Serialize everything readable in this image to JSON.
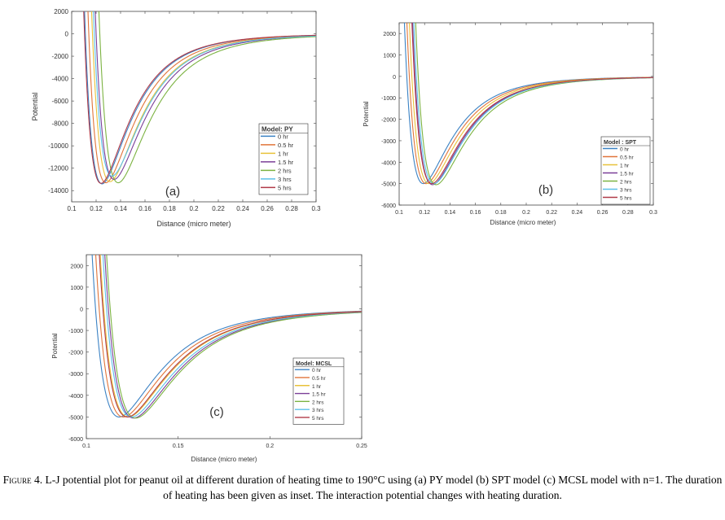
{
  "caption": {
    "label": "Figure 4.",
    "text": "L-J potential plot for peanut oil at different duration of heating time to 190°C using (a) PY model (b) SPT model (c) MCSL model with n=1. The duration of heating has been given as inset. The interaction potential changes with heating duration."
  },
  "colors": [
    "#3b82c4",
    "#e0743a",
    "#e8c23a",
    "#7b3f98",
    "#7cb342",
    "#5bc0e8",
    "#b03a48"
  ],
  "chart_data": [
    {
      "type": "line",
      "panel_label": "(a)",
      "title": "",
      "xlabel": "Distance (micro meter)",
      "ylabel": "Potential",
      "xlim": [
        0.1,
        0.3
      ],
      "ylim": [
        -15000,
        2000
      ],
      "xticks": [
        0.1,
        0.12,
        0.14,
        0.16,
        0.18,
        0.2,
        0.22,
        0.24,
        0.26,
        0.28,
        0.3
      ],
      "xtick_labels": [
        "0.1",
        "0.12",
        "0.14",
        "0.16",
        "0.18",
        "0.2",
        "0.22",
        "0.24",
        "0.26",
        "0.28",
        "0.3"
      ],
      "yticks": [
        -14000,
        -12000,
        -10000,
        -8000,
        -6000,
        -4000,
        -2000,
        0,
        2000
      ],
      "ytick_labels": [
        "-14000",
        "-12000",
        "-10000",
        "-8000",
        "-6000",
        "-4000",
        "-2000",
        "0",
        "2000"
      ],
      "legend": {
        "title": "Model: PY",
        "position": "right-bottom"
      },
      "series": [
        {
          "name": "0 hr",
          "sigma": 0.1112,
          "epsilon": 13400
        },
        {
          "name": "0.5 hr",
          "sigma": 0.114,
          "epsilon": 13300
        },
        {
          "name": "1 hr",
          "sigma": 0.117,
          "epsilon": 13200
        },
        {
          "name": "1.5 hr",
          "sigma": 0.12,
          "epsilon": 13000
        },
        {
          "name": "2 hrs",
          "sigma": 0.123,
          "epsilon": 13300
        },
        {
          "name": "3 hrs",
          "sigma": 0.1185,
          "epsilon": 12700
        },
        {
          "name": "5 hrs",
          "sigma": 0.1105,
          "epsilon": 13350
        }
      ]
    },
    {
      "type": "line",
      "panel_label": "(b)",
      "title": "",
      "xlabel": "Distance (micro meter)",
      "ylabel": "Potential",
      "xlim": [
        0.1,
        0.3
      ],
      "ylim": [
        -6000,
        2500
      ],
      "xticks": [
        0.1,
        0.12,
        0.14,
        0.16,
        0.18,
        0.2,
        0.22,
        0.24,
        0.26,
        0.28,
        0.3
      ],
      "xtick_labels": [
        "0.1",
        "0.12",
        "0.14",
        "0.16",
        "0.18",
        "0.2",
        "0.22",
        "0.24",
        "0.26",
        "0.28",
        "0.3"
      ],
      "yticks": [
        -6000,
        -5000,
        -4000,
        -3000,
        -2000,
        -1000,
        0,
        1000,
        2000
      ],
      "ytick_labels": [
        "-6000",
        "-5000",
        "-4000",
        "-3000",
        "-2000",
        "-1000",
        "0",
        "1000",
        "2000"
      ],
      "legend": {
        "title": "Model : SPT",
        "position": "right-bottom"
      },
      "series": [
        {
          "name": "0 hr",
          "sigma": 0.106,
          "epsilon": 5000
        },
        {
          "name": "0.5 hr",
          "sigma": 0.108,
          "epsilon": 5000
        },
        {
          "name": "1 hr",
          "sigma": 0.11,
          "epsilon": 5000
        },
        {
          "name": "1.5 hr",
          "sigma": 0.1125,
          "epsilon": 5050
        },
        {
          "name": "2 hrs",
          "sigma": 0.115,
          "epsilon": 5050
        },
        {
          "name": "3 hrs",
          "sigma": 0.1135,
          "epsilon": 5000
        },
        {
          "name": "5 hrs",
          "sigma": 0.112,
          "epsilon": 5000
        }
      ]
    },
    {
      "type": "line",
      "panel_label": "(c)",
      "title": "",
      "xlabel": "Distance (micro meter)",
      "ylabel": "Potential",
      "xlim": [
        0.1,
        0.25
      ],
      "ylim": [
        -6000,
        2500
      ],
      "xticks": [
        0.1,
        0.15,
        0.2,
        0.25
      ],
      "xtick_labels": [
        "0.1",
        "0.15",
        "0.2",
        "0.25"
      ],
      "yticks": [
        -6000,
        -5000,
        -4000,
        -3000,
        -2000,
        -1000,
        0,
        1000,
        2000
      ],
      "ytick_labels": [
        "-6000",
        "-5000",
        "-4000",
        "-3000",
        "-2000",
        "-1000",
        "0",
        "1000",
        "2000"
      ],
      "legend": {
        "title": "Model: MCSL",
        "position": "right-bottom"
      },
      "series": [
        {
          "name": "0 hr",
          "sigma": 0.105,
          "epsilon": 5000
        },
        {
          "name": "0.5 hr",
          "sigma": 0.107,
          "epsilon": 5000
        },
        {
          "name": "1 hr",
          "sigma": 0.1095,
          "epsilon": 5000
        },
        {
          "name": "1.5 hr",
          "sigma": 0.112,
          "epsilon": 5050
        },
        {
          "name": "2 hrs",
          "sigma": 0.113,
          "epsilon": 5050
        },
        {
          "name": "3 hrs",
          "sigma": 0.111,
          "epsilon": 5000
        },
        {
          "name": "5 hrs",
          "sigma": 0.109,
          "epsilon": 5000
        }
      ]
    }
  ]
}
